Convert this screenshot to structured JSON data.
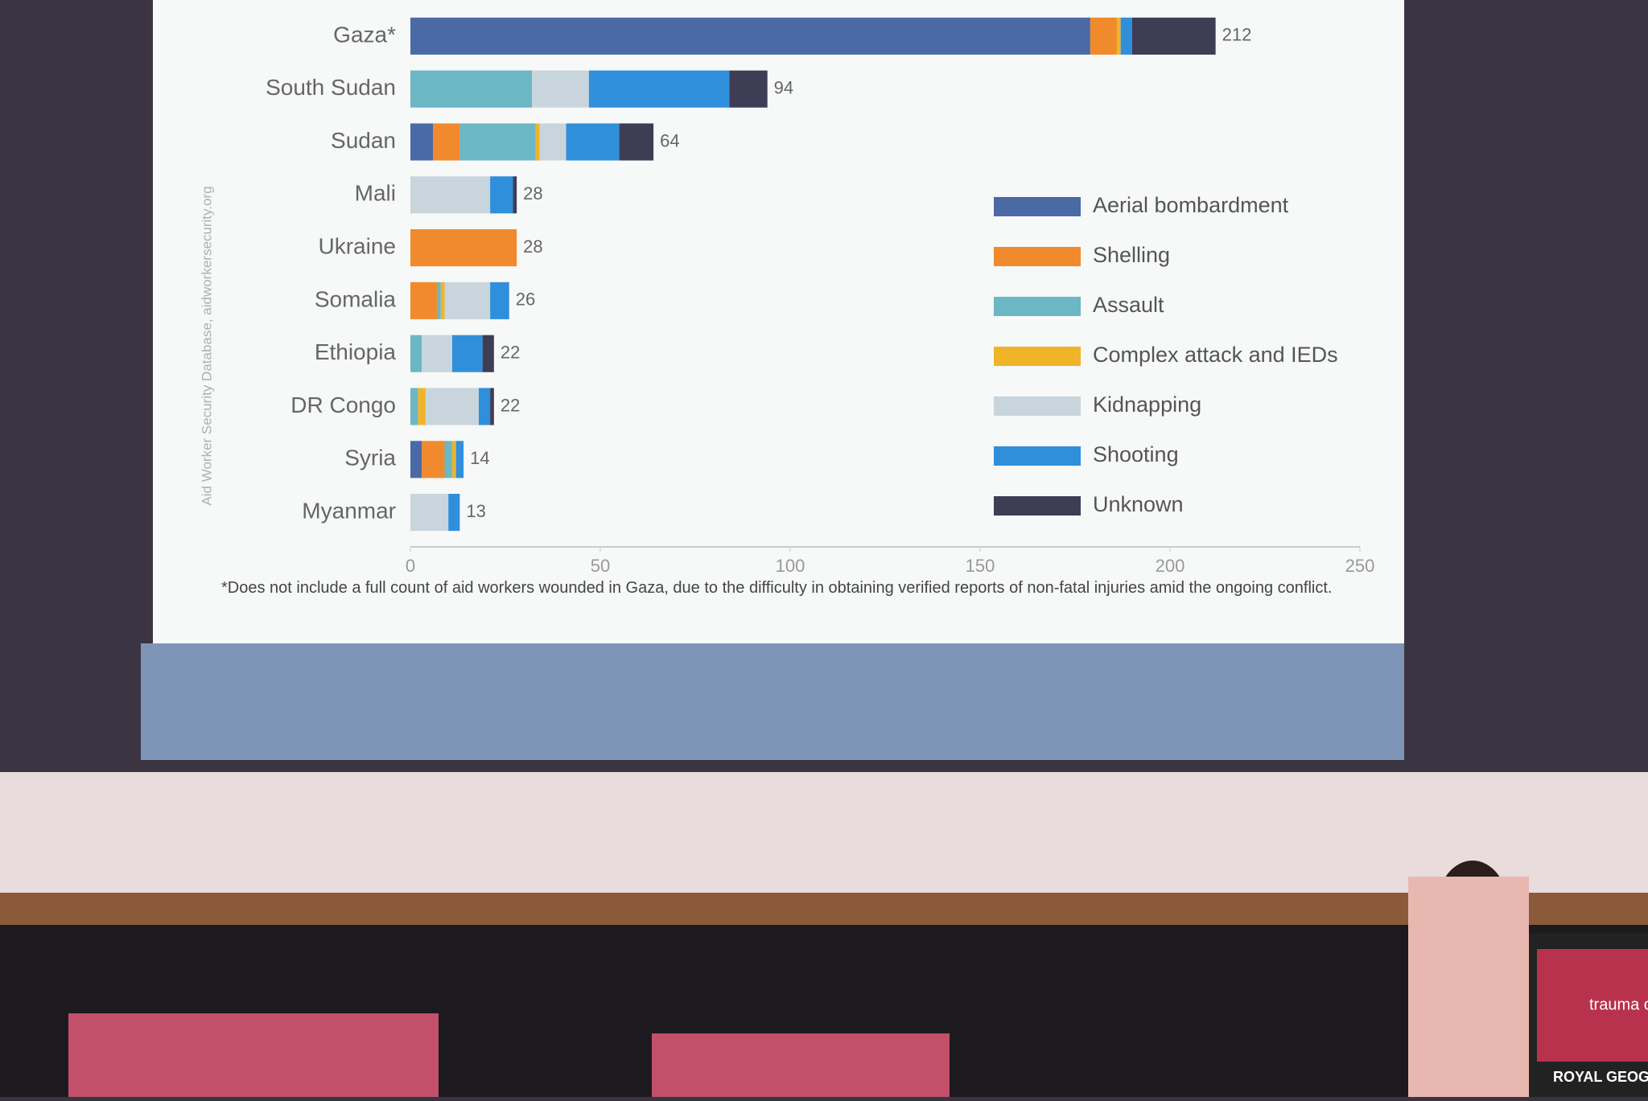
{
  "chart_data": {
    "type": "bar",
    "orientation": "horizontal",
    "stacked": true,
    "categories": [
      "Gaza*",
      "South Sudan",
      "Sudan",
      "Mali",
      "Ukraine",
      "Somalia",
      "Ethiopia",
      "DR Congo",
      "Syria",
      "Myanmar"
    ],
    "series": [
      {
        "name": "Aerial bombardment",
        "color": "#4a6aa5",
        "values": [
          179,
          0,
          6,
          0,
          0,
          0,
          0,
          0,
          3,
          0
        ]
      },
      {
        "name": "Shelling",
        "color": "#f08a2c",
        "values": [
          7,
          0,
          7,
          0,
          28,
          7,
          0,
          0,
          6,
          0
        ]
      },
      {
        "name": "Assault",
        "color": "#6bb7c4",
        "values": [
          0,
          32,
          20,
          0,
          0,
          1,
          3,
          2,
          2,
          0
        ]
      },
      {
        "name": "Complex attack and IEDs",
        "color": "#f0b429",
        "values": [
          1,
          0,
          1,
          0,
          0,
          1,
          0,
          2,
          1,
          0
        ]
      },
      {
        "name": "Kidnapping",
        "color": "#c9d5dc",
        "values": [
          0,
          15,
          7,
          21,
          0,
          12,
          8,
          14,
          0,
          10
        ]
      },
      {
        "name": "Shooting",
        "color": "#2f8fdb",
        "values": [
          3,
          37,
          14,
          6,
          0,
          5,
          8,
          3,
          2,
          3
        ]
      },
      {
        "name": "Unknown",
        "color": "#3e3d55",
        "values": [
          22,
          10,
          9,
          1,
          0,
          0,
          3,
          1,
          0,
          0
        ]
      }
    ],
    "totals": [
      212,
      94,
      64,
      28,
      28,
      26,
      22,
      22,
      14,
      13
    ],
    "xlim": [
      0,
      250
    ],
    "xticks": [
      0,
      50,
      100,
      150,
      200,
      250
    ],
    "legend": "right",
    "source": "Aid Worker Security Database, aidworkersecurity.org",
    "footnote": "*Does not include a full count of aid workers wounded in Gaza, due to the difficulty in obtaining verified reports of non-fatal injuries amid the ongoing conflict."
  },
  "scene": {
    "podium_text": "trauma confere",
    "venue_text": "ROYAL GEOGRAPHIC"
  }
}
